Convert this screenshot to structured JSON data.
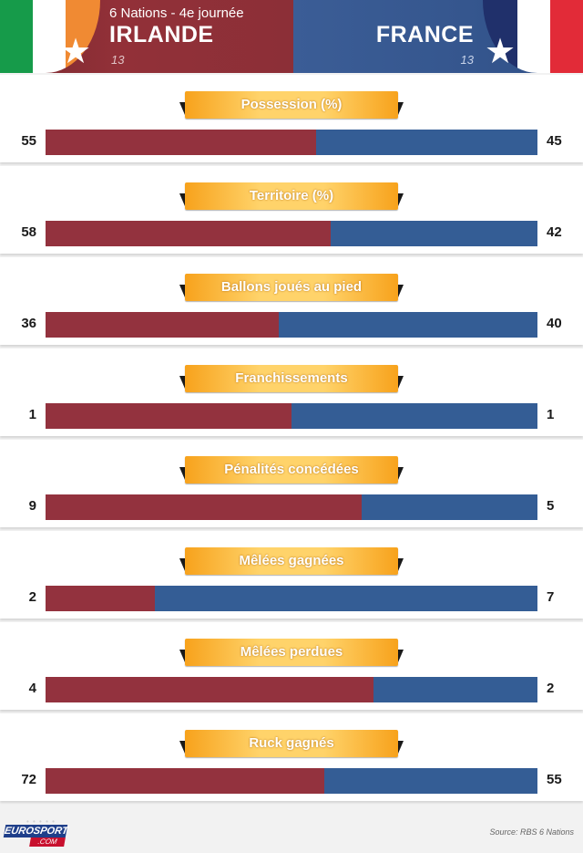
{
  "header": {
    "match_title": "6 Nations - 4e journée",
    "home_team": "IRLANDE",
    "away_team": "FRANCE",
    "home_score": "13",
    "away_score": "13",
    "home_color": "#93323e",
    "away_color": "#345d95",
    "label_color": "#f7a21c"
  },
  "chart_data": {
    "type": "bar",
    "orientation": "horizontal",
    "stacked": true,
    "series": [
      {
        "name": "IRLANDE"
      },
      {
        "name": "FRANCE"
      }
    ],
    "stats": [
      {
        "label": "Possession (%)",
        "home": "55",
        "away": "45"
      },
      {
        "label": "Territoire (%)",
        "home": "58",
        "away": "42"
      },
      {
        "label": "Ballons joués au pied",
        "home": "36",
        "away": "40"
      },
      {
        "label": "Franchissements",
        "home": "1",
        "away": "1"
      },
      {
        "label": "Pénalités concédées",
        "home": "9",
        "away": "5"
      },
      {
        "label": "Mêlées gagnées",
        "home": "2",
        "away": "7"
      },
      {
        "label": "Mêlées perdues",
        "home": "4",
        "away": "2"
      },
      {
        "label": "Ruck gagnés",
        "home": "72",
        "away": "55"
      }
    ]
  },
  "footer": {
    "logo_text": "EUROSPORT",
    "logo_sub": ".COM",
    "source": "Source: RBS 6 Nations"
  }
}
